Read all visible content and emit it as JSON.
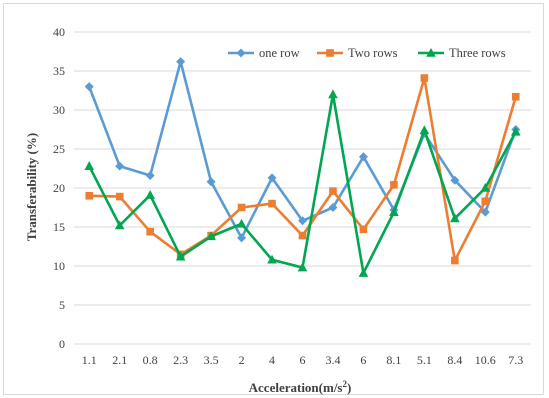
{
  "chart_data": {
    "type": "line",
    "categories": [
      "1.1",
      "2.1",
      "0.8",
      "2.3",
      "3.5",
      "2",
      "4",
      "6",
      "3.4",
      "6",
      "8.1",
      "5.1",
      "8.4",
      "10.6",
      "7.3"
    ],
    "series": [
      {
        "name": "one row",
        "color": "#5b9bd5",
        "marker": "diamond",
        "values": [
          33.0,
          22.8,
          21.6,
          36.2,
          20.8,
          13.6,
          21.3,
          15.8,
          17.5,
          24.0,
          17.2,
          27.0,
          21.0,
          16.9,
          27.5
        ]
      },
      {
        "name": "Two rows",
        "color": "#ed7d31",
        "marker": "square",
        "values": [
          19.0,
          18.9,
          14.4,
          11.5,
          13.9,
          17.5,
          18.0,
          13.9,
          19.6,
          14.7,
          20.4,
          34.1,
          10.7,
          18.3,
          31.7
        ]
      },
      {
        "name": "Three rows",
        "color": "#00a650",
        "marker": "triangle",
        "values": [
          22.8,
          15.2,
          19.1,
          11.2,
          13.8,
          15.4,
          10.8,
          9.8,
          32.0,
          9.1,
          16.9,
          27.4,
          16.1,
          20.0,
          27.2
        ]
      }
    ],
    "yticks": [
      "0",
      "5",
      "10",
      "15",
      "20",
      "25",
      "30",
      "35",
      "40"
    ],
    "ylim": [
      0,
      40
    ],
    "ylabel": "Transferability  (%)",
    "xlabel": "Acceleration(m/s",
    "xlabel_sup": "2",
    "xlabel_tail": ")",
    "grid": true,
    "legend_position": "top-right"
  }
}
